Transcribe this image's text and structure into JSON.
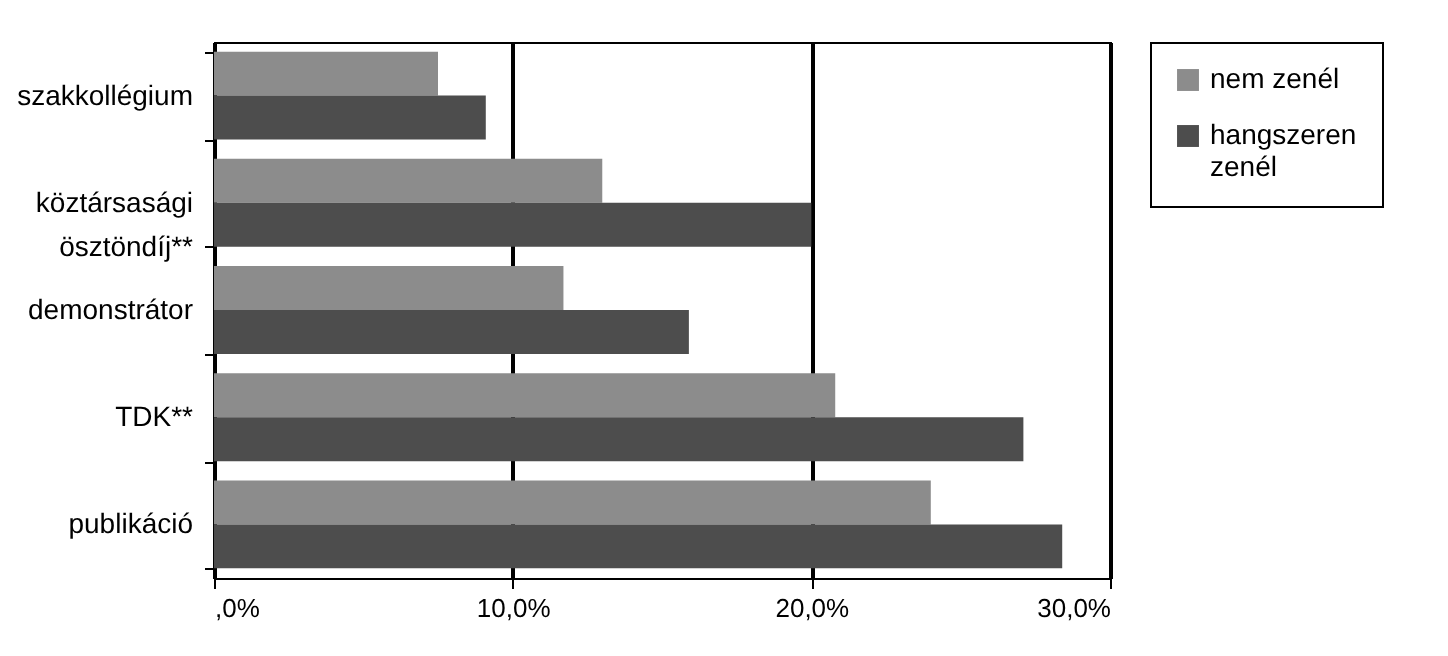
{
  "chart_data": {
    "type": "bar",
    "orientation": "horizontal",
    "categories": [
      "szakkollégium",
      "köztársasági ösztöndíj**",
      "demonstrátor",
      "TDK**",
      "publikáció"
    ],
    "series": [
      {
        "name": "nem zenél",
        "color": "#8c8c8c",
        "values": [
          7.5,
          13.0,
          11.7,
          20.8,
          24.0
        ]
      },
      {
        "name": "hangszeren zenél",
        "color": "#4d4d4d",
        "values": [
          9.1,
          20.0,
          15.9,
          27.1,
          28.4
        ]
      }
    ],
    "xlim": [
      0,
      30
    ],
    "xticks": [
      {
        "value": 0,
        "label": ",0%"
      },
      {
        "value": 10,
        "label": "10,0%"
      },
      {
        "value": 20,
        "label": "20,0%"
      },
      {
        "value": 30,
        "label": "30,0%"
      }
    ],
    "grid": "x",
    "legend": "right"
  }
}
